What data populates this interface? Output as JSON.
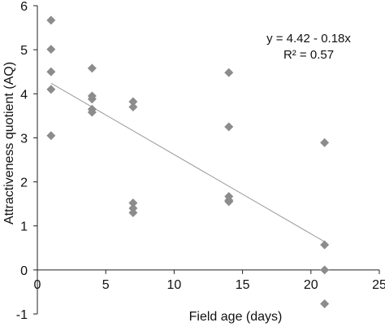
{
  "chart_data": {
    "type": "scatter",
    "title": "",
    "xlabel": "Field age (days)",
    "ylabel": "Attractiveness quotient (AQ)",
    "xlim": [
      0,
      25
    ],
    "ylim": [
      -1,
      6
    ],
    "x_ticks": [
      "0",
      "5",
      "10",
      "15",
      "20",
      "25"
    ],
    "y_ticks": [
      "-1",
      "0",
      "1",
      "2",
      "3",
      "4",
      "5",
      "6"
    ],
    "grid": false,
    "legend": "none",
    "marker": "diamond",
    "marker_color": "#8c8c8c",
    "trendline_color": "#9a9a9a",
    "annotation": {
      "equation": "y = 4.42 - 0.18x",
      "r_squared": "R² = 0.57"
    },
    "trendline": {
      "intercept": 4.42,
      "slope": -0.18,
      "x_range": [
        1,
        21
      ]
    },
    "points": [
      {
        "x": 1,
        "y": 5.67
      },
      {
        "x": 1,
        "y": 5.01
      },
      {
        "x": 1,
        "y": 4.5
      },
      {
        "x": 1,
        "y": 4.1
      },
      {
        "x": 1,
        "y": 3.05
      },
      {
        "x": 4,
        "y": 4.58
      },
      {
        "x": 4,
        "y": 3.95
      },
      {
        "x": 4,
        "y": 3.88
      },
      {
        "x": 4,
        "y": 3.65
      },
      {
        "x": 4,
        "y": 3.58
      },
      {
        "x": 7,
        "y": 3.82
      },
      {
        "x": 7,
        "y": 3.7
      },
      {
        "x": 7,
        "y": 1.52
      },
      {
        "x": 7,
        "y": 1.4
      },
      {
        "x": 7,
        "y": 1.3
      },
      {
        "x": 14,
        "y": 4.48
      },
      {
        "x": 14,
        "y": 3.25
      },
      {
        "x": 14,
        "y": 1.67
      },
      {
        "x": 14,
        "y": 1.58
      },
      {
        "x": 14,
        "y": 1.55
      },
      {
        "x": 21,
        "y": 2.89
      },
      {
        "x": 21,
        "y": 0.57
      },
      {
        "x": 21,
        "y": 0.0
      },
      {
        "x": 21,
        "y": -0.77
      }
    ]
  }
}
